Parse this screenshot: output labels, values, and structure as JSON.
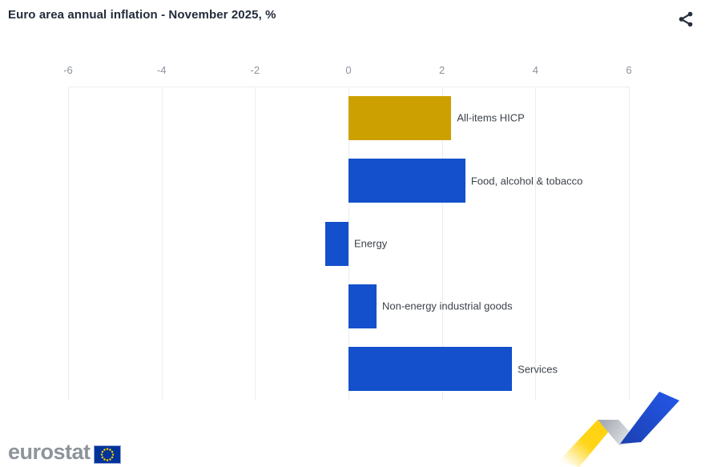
{
  "header": {
    "title": "Euro area annual inflation - November 2025, %",
    "share_icon": "share-icon"
  },
  "chart_data": {
    "type": "bar",
    "orientation": "horizontal",
    "title": "Euro area annual inflation - November 2025, %",
    "categories": [
      "All-items HICP",
      "Food, alcohol & tobacco",
      "Energy",
      "Non-energy industrial goods",
      "Services"
    ],
    "values": [
      2.2,
      2.5,
      -0.5,
      0.6,
      3.5
    ],
    "bar_colors": [
      "#cca000",
      "#1450cc",
      "#1450cc",
      "#1450cc",
      "#1450cc"
    ],
    "xlabel": "",
    "ylabel": "",
    "xlim": [
      -6,
      6
    ],
    "x_ticks": [
      -6,
      -4,
      -2,
      0,
      2,
      4,
      6
    ],
    "grid": true,
    "legend": false,
    "axis_position": "top"
  },
  "footer": {
    "logo_text": "eurostat",
    "logo_flag": "eu-flag",
    "decoration": "eurostat-zigzag-ribbon"
  },
  "colors": {
    "gold": "#cca000",
    "blue": "#1450cc",
    "grid": "#e8edf3",
    "tick_label": "#8c939d",
    "bar_label": "#3c424b",
    "title": "#232c3b",
    "share_icon": "#27303e",
    "logo_gray": "#8d949b",
    "flag_blue": "#003399",
    "star_yellow": "#ffcc00",
    "ribbon_yellow": "#ffd10e",
    "ribbon_silver": "#a7adb5",
    "ribbon_blue": "#2356e3"
  }
}
